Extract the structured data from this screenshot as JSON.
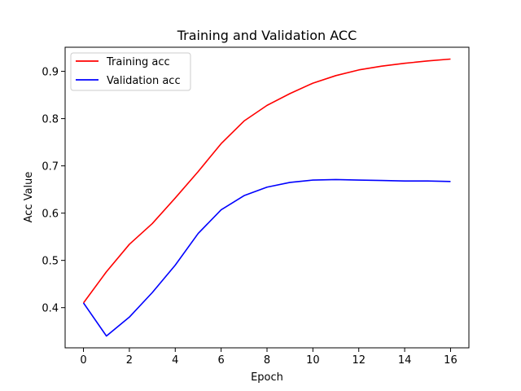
{
  "chart_data": {
    "type": "line",
    "title": "Training and Validation ACC",
    "xlabel": "Epoch",
    "ylabel": "Acc Value",
    "x": [
      0,
      1,
      2,
      3,
      4,
      5,
      6,
      7,
      8,
      9,
      10,
      11,
      12,
      13,
      14,
      15,
      16
    ],
    "xlim": [
      -0.8,
      16.8
    ],
    "ylim": [
      0.315,
      0.951
    ],
    "xticks": [
      0,
      2,
      4,
      6,
      8,
      10,
      12,
      14,
      16
    ],
    "yticks": [
      0.4,
      0.5,
      0.6,
      0.7,
      0.8,
      0.9
    ],
    "grid": false,
    "legend": {
      "placement": "top-left"
    },
    "series": [
      {
        "name": "Training acc",
        "color": "#ff0000",
        "values": [
          0.41,
          0.476,
          0.534,
          0.578,
          0.632,
          0.688,
          0.747,
          0.795,
          0.828,
          0.853,
          0.875,
          0.891,
          0.903,
          0.911,
          0.917,
          0.922,
          0.926
        ]
      },
      {
        "name": "Validation acc",
        "color": "#0000ff",
        "values": [
          0.41,
          0.34,
          0.38,
          0.432,
          0.49,
          0.557,
          0.607,
          0.637,
          0.655,
          0.665,
          0.67,
          0.671,
          0.67,
          0.669,
          0.668,
          0.668,
          0.667
        ]
      }
    ]
  }
}
